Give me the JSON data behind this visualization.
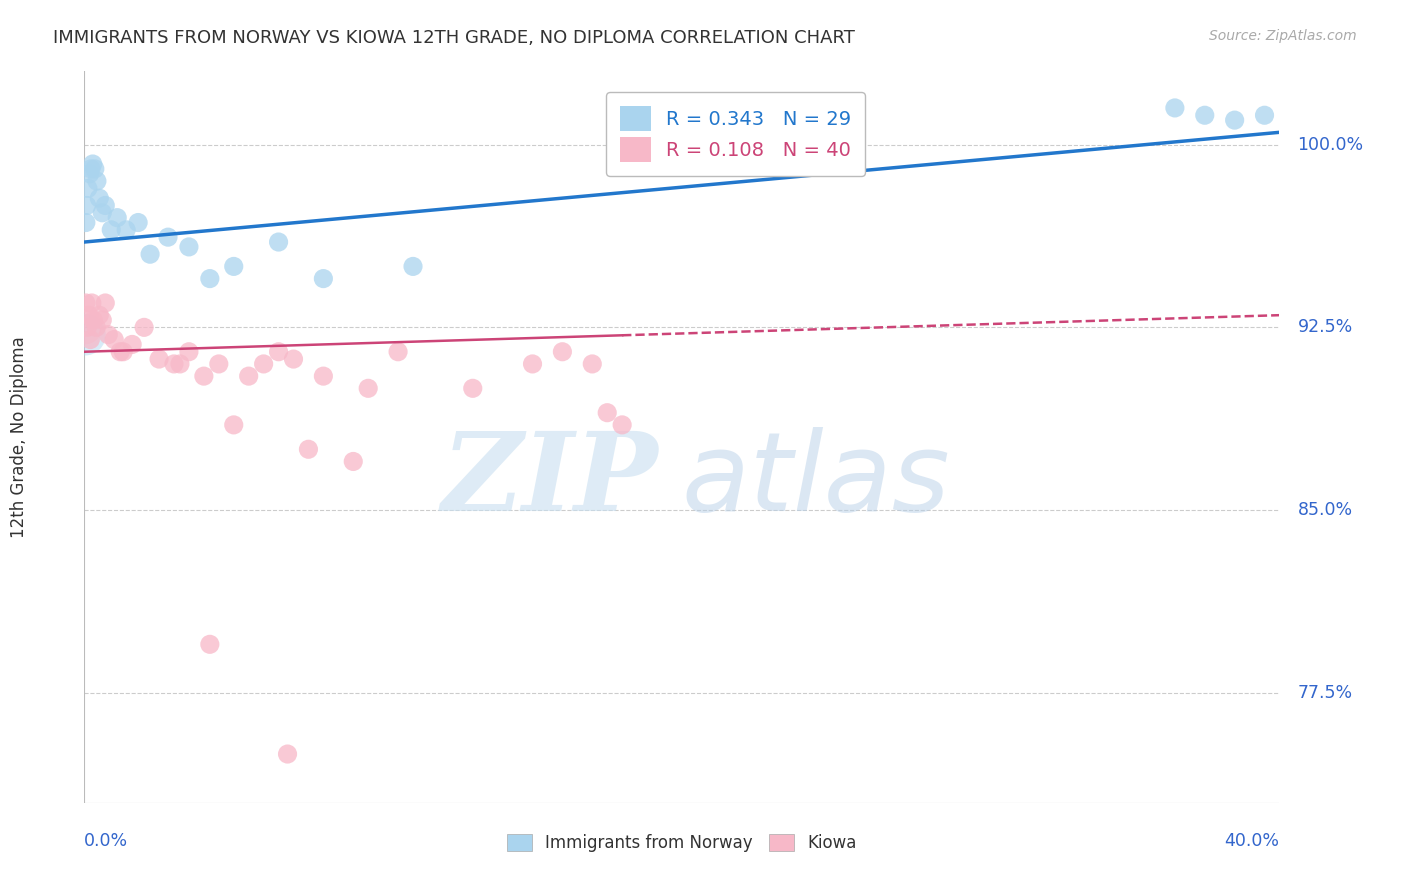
{
  "title": "IMMIGRANTS FROM NORWAY VS KIOWA 12TH GRADE, NO DIPLOMA CORRELATION CHART",
  "source": "Source: ZipAtlas.com",
  "ylabel": "12th Grade, No Diploma",
  "ylabel_ticks": [
    77.5,
    85.0,
    92.5,
    100.0
  ],
  "ylabel_tick_labels": [
    "77.5%",
    "85.0%",
    "92.5%",
    "100.0%"
  ],
  "xmin": 0.0,
  "xmax": 40.0,
  "ymin": 73.0,
  "ymax": 103.0,
  "watermark_zip": "ZIP",
  "watermark_atlas": "atlas",
  "legend_norway_r": "R = 0.343",
  "legend_norway_n": "N = 29",
  "legend_kiowa_r": "R = 0.108",
  "legend_kiowa_n": "N = 40",
  "norway_color": "#aad4ee",
  "norway_line_color": "#2277cc",
  "kiowa_color": "#f7b8c8",
  "kiowa_line_color": "#cc4477",
  "norway_x": [
    0.05,
    0.08,
    0.12,
    0.18,
    0.22,
    0.28,
    0.35,
    0.42,
    0.5,
    0.6,
    0.7,
    0.9,
    1.1,
    1.4,
    1.8,
    2.2,
    2.8,
    3.5,
    4.2,
    5.0,
    6.5,
    8.0,
    11.0,
    18.5,
    19.5,
    36.5,
    37.5,
    38.5,
    39.5
  ],
  "norway_y": [
    96.8,
    97.5,
    98.2,
    98.8,
    99.0,
    99.2,
    99.0,
    98.5,
    97.8,
    97.2,
    97.5,
    96.5,
    97.0,
    96.5,
    96.8,
    95.5,
    96.2,
    95.8,
    94.5,
    95.0,
    96.0,
    94.5,
    95.0,
    100.5,
    101.0,
    101.5,
    101.2,
    101.0,
    101.2
  ],
  "kiowa_x": [
    0.05,
    0.1,
    0.15,
    0.2,
    0.25,
    0.3,
    0.4,
    0.5,
    0.6,
    0.7,
    0.8,
    1.0,
    1.3,
    1.6,
    2.0,
    2.5,
    3.0,
    3.5,
    4.0,
    4.5,
    5.5,
    6.0,
    6.5,
    7.0,
    8.0,
    9.5,
    10.5,
    13.0,
    15.0,
    16.0,
    17.0,
    1.2,
    3.2,
    5.0,
    7.5,
    9.0,
    17.5,
    18.0,
    4.2,
    6.8
  ],
  "kiowa_y": [
    93.5,
    92.5,
    93.0,
    92.0,
    93.5,
    92.8,
    92.5,
    93.0,
    92.8,
    93.5,
    92.2,
    92.0,
    91.5,
    91.8,
    92.5,
    91.2,
    91.0,
    91.5,
    90.5,
    91.0,
    90.5,
    91.0,
    91.5,
    91.2,
    90.5,
    90.0,
    91.5,
    90.0,
    91.0,
    91.5,
    91.0,
    91.5,
    91.0,
    88.5,
    87.5,
    87.0,
    89.0,
    88.5,
    79.5,
    75.0
  ],
  "norway_trendline_y0": 96.0,
  "norway_trendline_y1": 100.5,
  "kiowa_trendline_y0": 91.5,
  "kiowa_trendline_y1": 93.0,
  "kiowa_solid_end_x": 18.0,
  "background_color": "#ffffff",
  "grid_color": "#cccccc",
  "title_color": "#333333",
  "source_color": "#aaaaaa",
  "axis_color": "#3366cc",
  "watermark_color_zip": "#c8dff0",
  "watermark_color_atlas": "#c8dff0"
}
